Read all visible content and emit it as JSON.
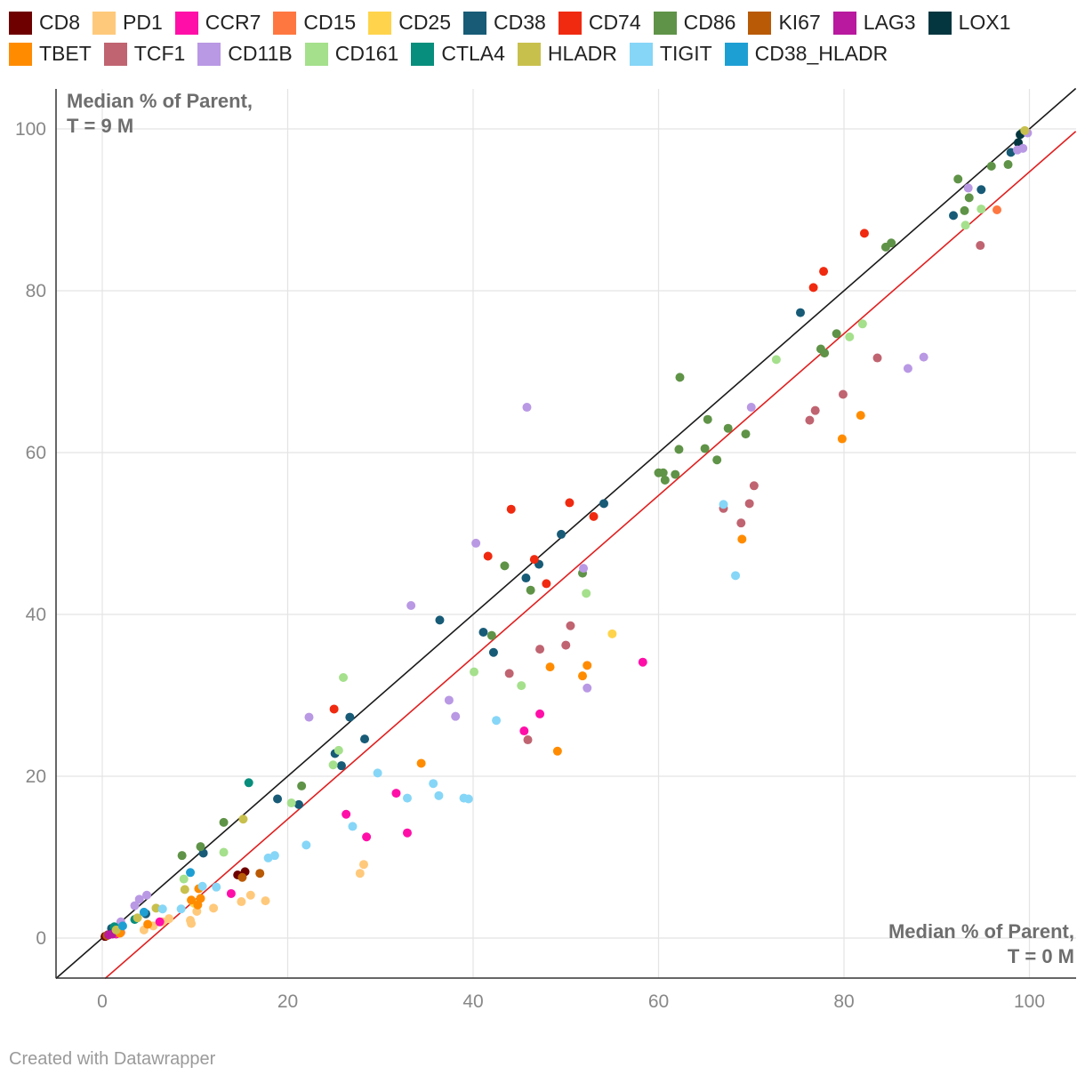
{
  "chart_data": {
    "type": "scatter",
    "title": "",
    "xlabel": [
      "Median % of Parent,",
      "T = 0 M"
    ],
    "ylabel": [
      "Median % of Parent,",
      "T = 9 M"
    ],
    "xlim": [
      -5,
      105
    ],
    "ylim": [
      -5,
      105
    ],
    "xticks": [
      0,
      20,
      40,
      60,
      80,
      100
    ],
    "yticks": [
      0,
      20,
      40,
      60,
      80,
      100
    ],
    "grid": true,
    "legend_position": "top",
    "reference_lines": [
      {
        "name": "",
        "color": "#1a1a1a",
        "intercept": 0,
        "slope": 1
      },
      {
        "name": "",
        "color": "#e02020",
        "intercept": -5.3,
        "slope": 1
      }
    ],
    "series": [
      {
        "name": "CD8",
        "color": "#6e0000",
        "points": [
          [
            0.3,
            0.2
          ],
          [
            14.6,
            7.8
          ],
          [
            15.4,
            8.2
          ],
          [
            0.6,
            0.4
          ]
        ]
      },
      {
        "name": "PD1",
        "color": "#ffc97b",
        "points": [
          [
            4.5,
            1.0
          ],
          [
            5.5,
            1.5
          ],
          [
            6.5,
            2.0
          ],
          [
            7.2,
            2.4
          ],
          [
            9.5,
            2.2
          ],
          [
            9.6,
            1.8
          ],
          [
            10.2,
            3.3
          ],
          [
            12.0,
            3.7
          ],
          [
            15.0,
            4.5
          ],
          [
            16.0,
            5.3
          ],
          [
            17.6,
            4.6
          ],
          [
            27.8,
            8.0
          ],
          [
            28.2,
            9.1
          ],
          [
            0.9,
            0.6
          ]
        ]
      },
      {
        "name": "CCR7",
        "color": "#ff0fa8",
        "points": [
          [
            1.5,
            0.5
          ],
          [
            6.2,
            2.0
          ],
          [
            13.9,
            5.5
          ],
          [
            26.3,
            15.3
          ],
          [
            28.5,
            12.5
          ],
          [
            31.7,
            17.9
          ],
          [
            32.9,
            13.0
          ],
          [
            45.5,
            25.6
          ],
          [
            47.2,
            27.7
          ],
          [
            58.3,
            34.1
          ]
        ]
      },
      {
        "name": "CD15",
        "color": "#ff7740",
        "points": [
          [
            96.5,
            90.0
          ],
          [
            2.0,
            0.7
          ],
          [
            0.8,
            0.5
          ]
        ]
      },
      {
        "name": "CD25",
        "color": "#ffd44c",
        "points": [
          [
            55.0,
            37.6
          ],
          [
            9.9,
            4.3
          ],
          [
            1.2,
            0.6
          ]
        ]
      },
      {
        "name": "CD38",
        "color": "#175b77",
        "points": [
          [
            1.0,
            1.2
          ],
          [
            4.7,
            3.0
          ],
          [
            10.9,
            10.5
          ],
          [
            18.9,
            17.2
          ],
          [
            21.2,
            16.5
          ],
          [
            25.1,
            22.8
          ],
          [
            25.8,
            21.3
          ],
          [
            26.7,
            27.3
          ],
          [
            28.3,
            24.6
          ],
          [
            36.4,
            39.3
          ],
          [
            41.1,
            37.8
          ],
          [
            42.2,
            35.3
          ],
          [
            45.7,
            44.5
          ],
          [
            47.1,
            46.2
          ],
          [
            49.5,
            49.9
          ],
          [
            54.1,
            53.7
          ],
          [
            75.3,
            77.3
          ],
          [
            91.8,
            89.3
          ],
          [
            94.8,
            92.5
          ],
          [
            98.0,
            97.1
          ]
        ]
      },
      {
        "name": "CD74",
        "color": "#f02a10",
        "points": [
          [
            25.0,
            28.3
          ],
          [
            41.6,
            47.2
          ],
          [
            44.1,
            53.0
          ],
          [
            46.6,
            46.8
          ],
          [
            47.9,
            43.8
          ],
          [
            50.4,
            53.8
          ],
          [
            53.0,
            52.1
          ],
          [
            76.7,
            80.4
          ],
          [
            77.8,
            82.4
          ],
          [
            82.2,
            87.1
          ]
        ]
      },
      {
        "name": "CD86",
        "color": "#5f9347",
        "points": [
          [
            8.6,
            10.2
          ],
          [
            10.6,
            11.3
          ],
          [
            13.1,
            14.3
          ],
          [
            21.5,
            18.8
          ],
          [
            42.0,
            37.4
          ],
          [
            43.4,
            46.0
          ],
          [
            46.2,
            43.0
          ],
          [
            51.8,
            45.1
          ],
          [
            60.0,
            57.5
          ],
          [
            60.5,
            57.5
          ],
          [
            60.7,
            56.6
          ],
          [
            61.8,
            57.3
          ],
          [
            62.2,
            60.4
          ],
          [
            62.3,
            69.3
          ],
          [
            65.0,
            60.5
          ],
          [
            65.3,
            64.1
          ],
          [
            66.3,
            59.1
          ],
          [
            67.5,
            63.0
          ],
          [
            69.4,
            62.3
          ],
          [
            77.5,
            72.8
          ],
          [
            77.9,
            72.3
          ],
          [
            79.2,
            74.7
          ],
          [
            84.5,
            85.4
          ],
          [
            85.1,
            85.9
          ],
          [
            92.3,
            93.8
          ],
          [
            93.0,
            89.9
          ],
          [
            93.5,
            91.5
          ],
          [
            95.9,
            95.4
          ],
          [
            97.7,
            95.6
          ],
          [
            99.2,
            99.5
          ]
        ]
      },
      {
        "name": "KI67",
        "color": "#b95a06",
        "points": [
          [
            15.1,
            7.5
          ],
          [
            17.0,
            8.0
          ],
          [
            0.5,
            0.3
          ]
        ]
      },
      {
        "name": "LAG3",
        "color": "#b8199e",
        "points": [
          [
            0.7,
            0.4
          ],
          [
            1.1,
            0.5
          ]
        ]
      },
      {
        "name": "LOX1",
        "color": "#043640",
        "points": [
          [
            98.8,
            98.3
          ],
          [
            99.0,
            99.3
          ]
        ]
      },
      {
        "name": "TBET",
        "color": "#ff8c00",
        "points": [
          [
            4.9,
            1.7
          ],
          [
            9.6,
            4.7
          ],
          [
            10.3,
            4.1
          ],
          [
            10.4,
            6.1
          ],
          [
            10.6,
            4.9
          ],
          [
            34.4,
            21.6
          ],
          [
            48.3,
            33.5
          ],
          [
            49.1,
            23.1
          ],
          [
            51.8,
            32.4
          ],
          [
            52.3,
            33.7
          ],
          [
            69.0,
            49.3
          ],
          [
            79.8,
            61.7
          ],
          [
            81.8,
            64.6
          ],
          [
            1.9,
            0.6
          ]
        ]
      },
      {
        "name": "TCF1",
        "color": "#c06471",
        "points": [
          [
            43.9,
            32.7
          ],
          [
            45.9,
            24.5
          ],
          [
            47.2,
            35.7
          ],
          [
            50.0,
            36.2
          ],
          [
            50.5,
            38.6
          ],
          [
            67.0,
            53.1
          ],
          [
            68.9,
            51.3
          ],
          [
            69.8,
            53.7
          ],
          [
            70.3,
            55.9
          ],
          [
            76.3,
            64.0
          ],
          [
            76.9,
            65.2
          ],
          [
            79.9,
            67.2
          ],
          [
            83.6,
            71.7
          ],
          [
            94.7,
            85.6
          ]
        ]
      },
      {
        "name": "CD11B",
        "color": "#b998e4",
        "points": [
          [
            2.0,
            2.0
          ],
          [
            3.5,
            4.0
          ],
          [
            4.0,
            4.8
          ],
          [
            4.8,
            5.3
          ],
          [
            22.3,
            27.3
          ],
          [
            33.3,
            41.1
          ],
          [
            37.4,
            29.4
          ],
          [
            38.1,
            27.4
          ],
          [
            40.3,
            48.8
          ],
          [
            45.8,
            65.6
          ],
          [
            51.9,
            45.7
          ],
          [
            52.3,
            30.9
          ],
          [
            70.0,
            65.6
          ],
          [
            86.9,
            70.4
          ],
          [
            88.6,
            71.8
          ],
          [
            93.4,
            92.7
          ],
          [
            98.7,
            97.4
          ],
          [
            99.3,
            97.6
          ],
          [
            99.8,
            99.5
          ]
        ]
      },
      {
        "name": "CD161",
        "color": "#a5e08c",
        "points": [
          [
            8.8,
            7.3
          ],
          [
            13.1,
            10.6
          ],
          [
            20.4,
            16.7
          ],
          [
            24.9,
            21.4
          ],
          [
            25.5,
            23.2
          ],
          [
            26.0,
            32.2
          ],
          [
            40.1,
            32.9
          ],
          [
            45.2,
            31.2
          ],
          [
            52.2,
            42.6
          ],
          [
            72.7,
            71.5
          ],
          [
            80.6,
            74.3
          ],
          [
            82.0,
            75.9
          ],
          [
            93.1,
            88.1
          ],
          [
            94.8,
            90.1
          ]
        ]
      },
      {
        "name": "CTLA4",
        "color": "#078e7c",
        "points": [
          [
            15.8,
            19.2
          ],
          [
            1.3,
            1.4
          ],
          [
            3.5,
            2.3
          ]
        ]
      },
      {
        "name": "HLADR",
        "color": "#c8c04d",
        "points": [
          [
            1.5,
            1.0
          ],
          [
            3.8,
            2.5
          ],
          [
            5.8,
            3.7
          ],
          [
            8.9,
            6.0
          ],
          [
            15.2,
            14.7
          ],
          [
            99.5,
            99.8
          ]
        ]
      },
      {
        "name": "TIGIT",
        "color": "#86d6f7",
        "points": [
          [
            6.5,
            3.6
          ],
          [
            8.5,
            3.6
          ],
          [
            10.8,
            6.4
          ],
          [
            12.3,
            6.3
          ],
          [
            17.9,
            9.9
          ],
          [
            18.6,
            10.2
          ],
          [
            22.0,
            11.5
          ],
          [
            27.0,
            13.8
          ],
          [
            29.7,
            20.4
          ],
          [
            32.9,
            17.3
          ],
          [
            35.7,
            19.1
          ],
          [
            36.3,
            17.6
          ],
          [
            39.0,
            17.3
          ],
          [
            39.5,
            17.2
          ],
          [
            42.5,
            26.9
          ],
          [
            67.0,
            53.6
          ],
          [
            68.3,
            44.8
          ]
        ]
      },
      {
        "name": "CD38_HLADR",
        "color": "#1e9fd4",
        "points": [
          [
            2.2,
            1.5
          ],
          [
            4.5,
            3.2
          ],
          [
            9.5,
            8.1
          ]
        ]
      }
    ]
  },
  "footer": {
    "credit": "Created with Datawrapper"
  }
}
